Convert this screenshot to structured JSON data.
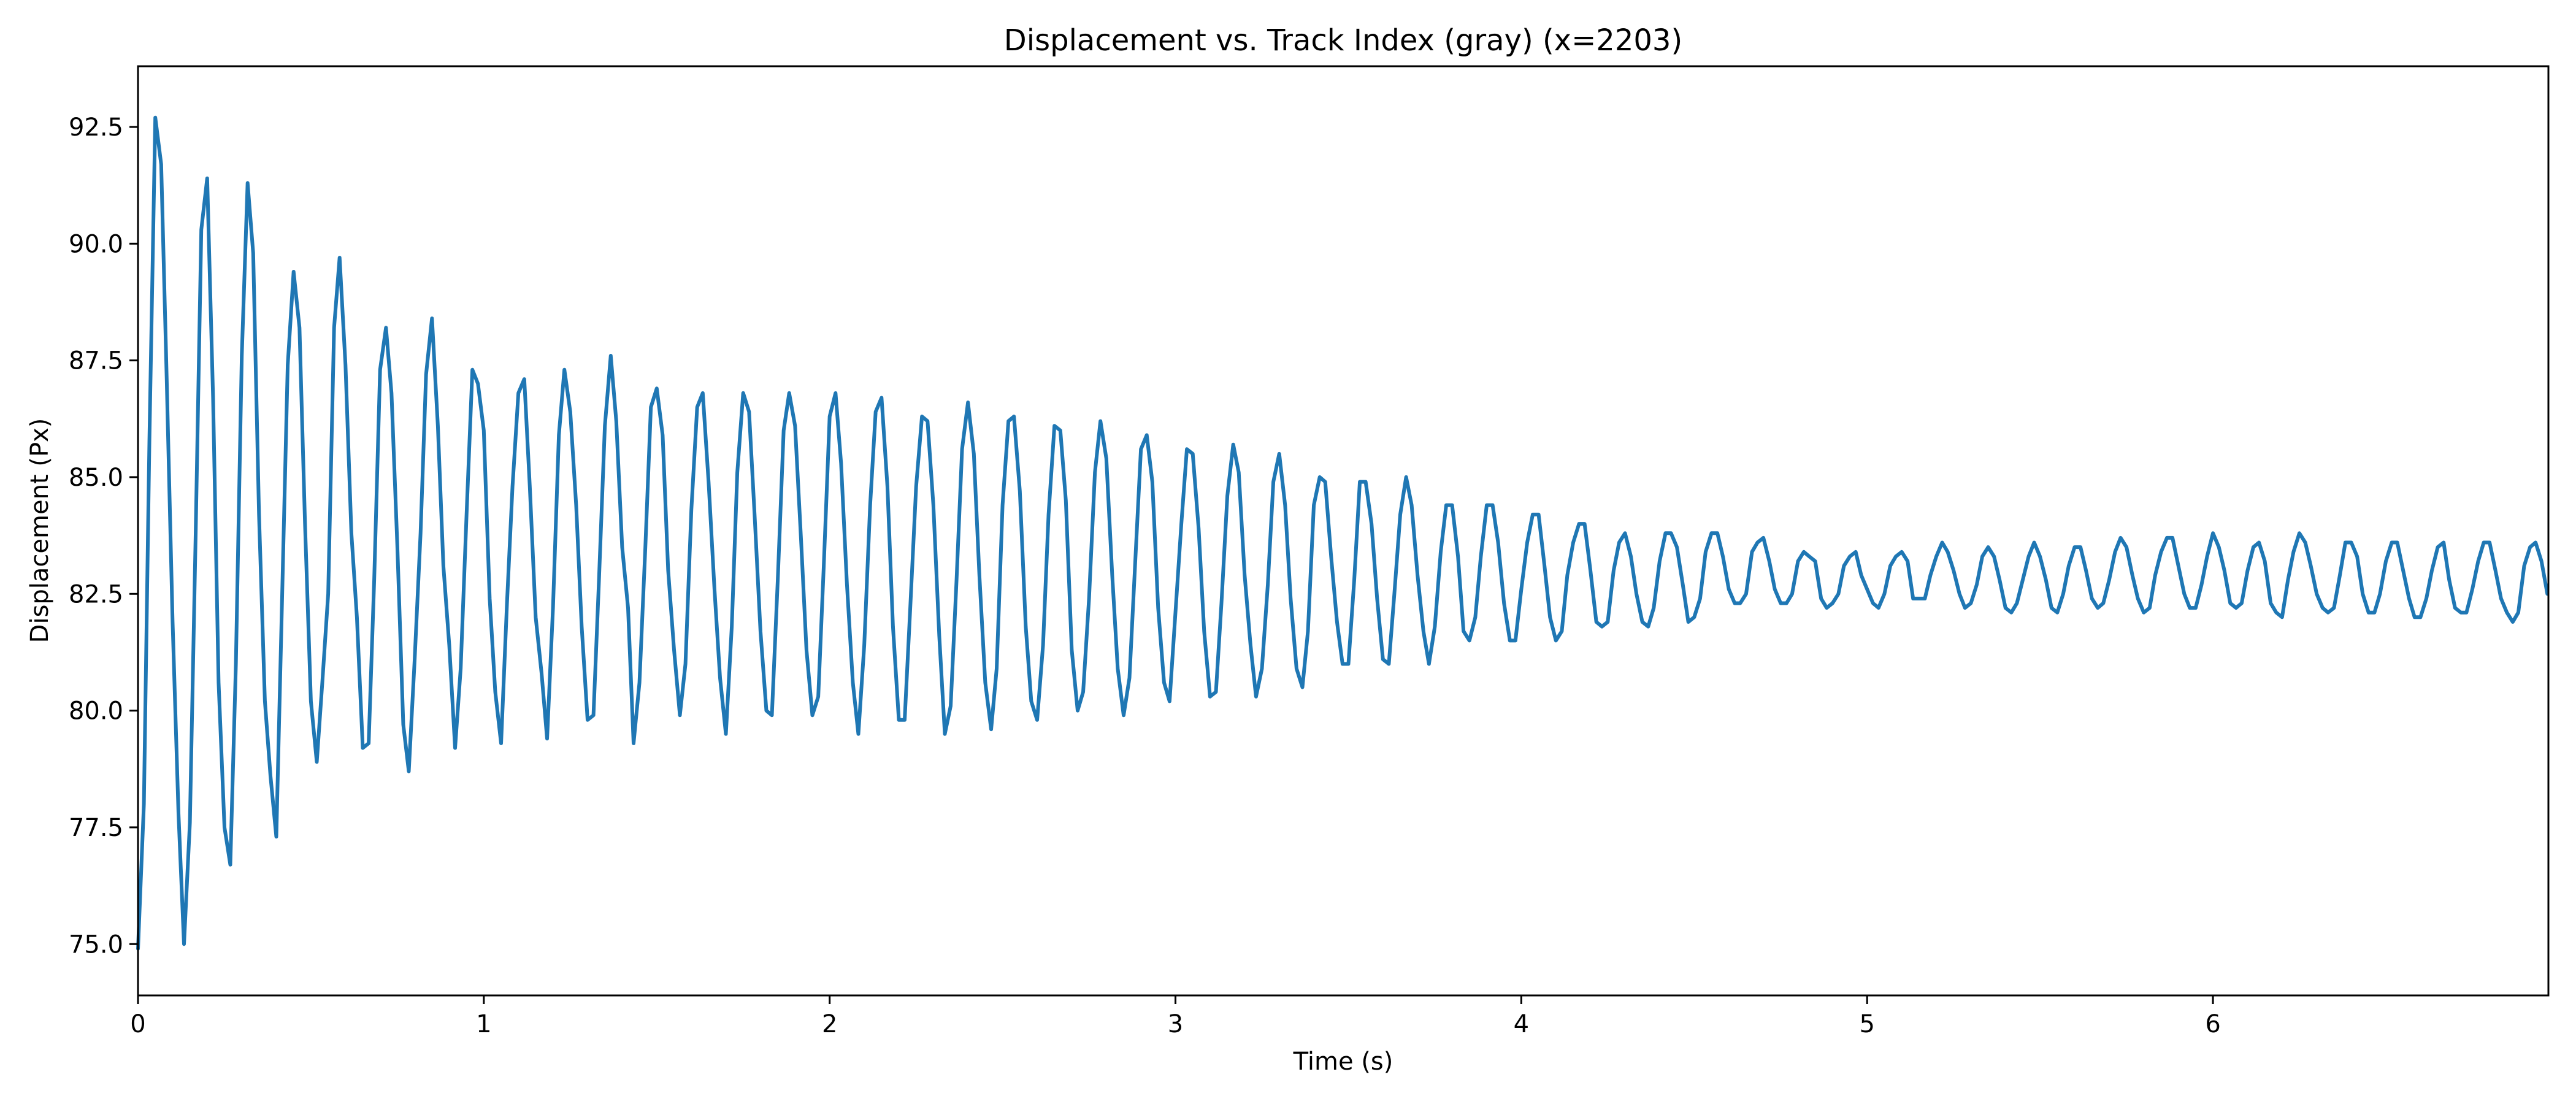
{
  "chart_data": {
    "type": "line",
    "title": "Displacement vs. Track Index (gray) (x=2203)",
    "xlabel": "Time (s)",
    "ylabel": "Displacement (Px)",
    "xlim": [
      0,
      6.97
    ],
    "ylim": [
      73.9,
      93.8
    ],
    "x_ticks": [
      0,
      1,
      2,
      3,
      4,
      5,
      6
    ],
    "x_tick_labels": [
      "0",
      "1",
      "2",
      "3",
      "4",
      "5",
      "6"
    ],
    "y_ticks": [
      75.0,
      77.5,
      80.0,
      82.5,
      85.0,
      87.5,
      90.0,
      92.5
    ],
    "y_tick_labels": [
      "75.0",
      "77.5",
      "80.0",
      "82.5",
      "85.0",
      "87.5",
      "90.0",
      "92.5"
    ],
    "grid": false,
    "legend": "none",
    "line_color": "#1f77b4",
    "series": [
      {
        "x": [
          0.0,
          0.017,
          0.033,
          0.05,
          0.067,
          0.083,
          0.1,
          0.117,
          0.133,
          0.15,
          0.167,
          0.183,
          0.2,
          0.217,
          0.233,
          0.25,
          0.267,
          0.283,
          0.3,
          0.317,
          0.333,
          0.35,
          0.367,
          0.383,
          0.4,
          0.417,
          0.433,
          0.45,
          0.467,
          0.483,
          0.5,
          0.517,
          0.533,
          0.55,
          0.567,
          0.583,
          0.6,
          0.617,
          0.633,
          0.65,
          0.667,
          0.683,
          0.7,
          0.717,
          0.733,
          0.75,
          0.767,
          0.783,
          0.8,
          0.817,
          0.833,
          0.85,
          0.867,
          0.883,
          0.9,
          0.917,
          0.933,
          0.95,
          0.967,
          0.983,
          1.0,
          1.017,
          1.033,
          1.05,
          1.067,
          1.083,
          1.1,
          1.117,
          1.133,
          1.15,
          1.167,
          1.183,
          1.2,
          1.217,
          1.233,
          1.25,
          1.267,
          1.283,
          1.3,
          1.317,
          1.333,
          1.35,
          1.367,
          1.383,
          1.4,
          1.417,
          1.433,
          1.45,
          1.467,
          1.483,
          1.5,
          1.517,
          1.533,
          1.55,
          1.567,
          1.583,
          1.6,
          1.617,
          1.633,
          1.65,
          1.667,
          1.683,
          1.7,
          1.717,
          1.733,
          1.75,
          1.767,
          1.783,
          1.8,
          1.817,
          1.833,
          1.85,
          1.867,
          1.883,
          1.9,
          1.917,
          1.933,
          1.95,
          1.967,
          1.983,
          2.0,
          2.017,
          2.033,
          2.05,
          2.067,
          2.083,
          2.1,
          2.117,
          2.133,
          2.15,
          2.167,
          2.183,
          2.2,
          2.217,
          2.233,
          2.25,
          2.267,
          2.283,
          2.3,
          2.317,
          2.333,
          2.35,
          2.367,
          2.383,
          2.4,
          2.417,
          2.433,
          2.45,
          2.467,
          2.483,
          2.5,
          2.517,
          2.533,
          2.55,
          2.567,
          2.583,
          2.6,
          2.617,
          2.633,
          2.65,
          2.667,
          2.683,
          2.7,
          2.717,
          2.733,
          2.75,
          2.767,
          2.783,
          2.8,
          2.817,
          2.833,
          2.85,
          2.867,
          2.883,
          2.9,
          2.917,
          2.933,
          2.95,
          2.967,
          2.983,
          3.0,
          3.017,
          3.033,
          3.05,
          3.067,
          3.083,
          3.1,
          3.117,
          3.133,
          3.15,
          3.167,
          3.183,
          3.2,
          3.217,
          3.233,
          3.25,
          3.267,
          3.283,
          3.3,
          3.317,
          3.333,
          3.35,
          3.367,
          3.383,
          3.4,
          3.417,
          3.433,
          3.45,
          3.467,
          3.483,
          3.5,
          3.517,
          3.533,
          3.55,
          3.567,
          3.583,
          3.6,
          3.617,
          3.633,
          3.65,
          3.667,
          3.683,
          3.7,
          3.717,
          3.733,
          3.75,
          3.767,
          3.783,
          3.8,
          3.817,
          3.833,
          3.85,
          3.867,
          3.883,
          3.9,
          3.917,
          3.933,
          3.95,
          3.967,
          3.983,
          4.0,
          4.017,
          4.033,
          4.05,
          4.067,
          4.083,
          4.1,
          4.117,
          4.133,
          4.15,
          4.167,
          4.183,
          4.2,
          4.217,
          4.233,
          4.25,
          4.267,
          4.283,
          4.3,
          4.317,
          4.333,
          4.35,
          4.367,
          4.383,
          4.4,
          4.417,
          4.433,
          4.45,
          4.467,
          4.483,
          4.5,
          4.517,
          4.533,
          4.55,
          4.567,
          4.583,
          4.6,
          4.617,
          4.633,
          4.65,
          4.667,
          4.683,
          4.7,
          4.717,
          4.733,
          4.75,
          4.767,
          4.783,
          4.8,
          4.817,
          4.833,
          4.85,
          4.867,
          4.883,
          4.9,
          4.917,
          4.933,
          4.95,
          4.967,
          4.983,
          5.0,
          5.017,
          5.033,
          5.05,
          5.067,
          5.083,
          5.1,
          5.117,
          5.133,
          5.15,
          5.167,
          5.183,
          5.2,
          5.217,
          5.233,
          5.25,
          5.267,
          5.283,
          5.3,
          5.317,
          5.333,
          5.35,
          5.367,
          5.383,
          5.4,
          5.417,
          5.433,
          5.45,
          5.467,
          5.483,
          5.5,
          5.517,
          5.533,
          5.55,
          5.567,
          5.583,
          5.6,
          5.617,
          5.633,
          5.65,
          5.667,
          5.683,
          5.7,
          5.717,
          5.733,
          5.75,
          5.767,
          5.783,
          5.8,
          5.817,
          5.833,
          5.85,
          5.867,
          5.883,
          5.9,
          5.917,
          5.933,
          5.95,
          5.967,
          5.983,
          6.0,
          6.017,
          6.033,
          6.05,
          6.067,
          6.083,
          6.1,
          6.117,
          6.133,
          6.15,
          6.167,
          6.183,
          6.2,
          6.217,
          6.233,
          6.25,
          6.267,
          6.283,
          6.3,
          6.317,
          6.333,
          6.35,
          6.367,
          6.383,
          6.4,
          6.417,
          6.433,
          6.45,
          6.467,
          6.483,
          6.5,
          6.517,
          6.533,
          6.55,
          6.567,
          6.583,
          6.6,
          6.617,
          6.633,
          6.65,
          6.667,
          6.683,
          6.7,
          6.717,
          6.733,
          6.75,
          6.767,
          6.783,
          6.8,
          6.817,
          6.833,
          6.85,
          6.867,
          6.883,
          6.9,
          6.917,
          6.933,
          6.95,
          6.967
        ],
        "y": [
          74.9,
          78.0,
          85.8,
          92.7,
          91.7,
          87.1,
          81.9,
          77.8,
          75.0,
          77.6,
          83.9,
          90.3,
          91.4,
          86.7,
          80.6,
          77.5,
          76.7,
          81.0,
          87.6,
          91.3,
          89.8,
          84.2,
          80.2,
          78.6,
          77.3,
          82.5,
          87.4,
          89.4,
          88.2,
          84.0,
          80.2,
          78.9,
          80.6,
          82.5,
          88.2,
          89.7,
          87.4,
          83.8,
          82.0,
          79.2,
          79.3,
          82.8,
          87.3,
          88.2,
          86.8,
          83.5,
          79.7,
          78.7,
          81.1,
          83.8,
          87.2,
          88.4,
          86.1,
          83.1,
          81.4,
          79.2,
          80.9,
          84.2,
          87.3,
          87.0,
          86.0,
          82.4,
          80.4,
          79.3,
          82.3,
          84.8,
          86.8,
          87.1,
          84.8,
          82.0,
          80.8,
          79.4,
          82.2,
          85.9,
          87.3,
          86.4,
          84.4,
          81.8,
          79.8,
          79.9,
          82.8,
          86.1,
          87.6,
          86.2,
          83.5,
          82.2,
          79.3,
          80.6,
          83.5,
          86.5,
          86.9,
          85.9,
          83.0,
          81.3,
          79.9,
          81.0,
          84.3,
          86.5,
          86.8,
          84.9,
          82.6,
          80.7,
          79.5,
          81.8,
          85.1,
          86.8,
          86.4,
          84.2,
          81.7,
          80.0,
          79.9,
          82.8,
          86.0,
          86.8,
          86.1,
          83.7,
          81.3,
          79.9,
          80.3,
          83.1,
          86.3,
          86.8,
          85.3,
          82.7,
          80.6,
          79.5,
          81.4,
          84.4,
          86.4,
          86.7,
          84.8,
          81.8,
          79.8,
          79.8,
          82.2,
          84.8,
          86.3,
          86.2,
          84.4,
          81.6,
          79.5,
          80.1,
          82.8,
          85.6,
          86.6,
          85.5,
          82.9,
          80.6,
          79.6,
          80.9,
          84.4,
          86.2,
          86.3,
          84.7,
          81.8,
          80.2,
          79.8,
          81.4,
          84.2,
          86.1,
          86.0,
          84.5,
          81.3,
          80.0,
          80.4,
          82.4,
          85.1,
          86.2,
          85.4,
          82.9,
          80.9,
          79.9,
          80.7,
          83.1,
          85.6,
          85.9,
          84.9,
          82.2,
          80.6,
          80.2,
          82.1,
          84.0,
          85.6,
          85.5,
          83.9,
          81.7,
          80.3,
          80.4,
          82.3,
          84.6,
          85.7,
          85.1,
          82.9,
          81.4,
          80.3,
          80.9,
          82.7,
          84.9,
          85.5,
          84.4,
          82.4,
          80.9,
          80.5,
          81.7,
          84.4,
          85.0,
          84.9,
          83.3,
          81.9,
          81.0,
          81.0,
          82.8,
          84.9,
          84.9,
          84.0,
          82.4,
          81.1,
          81.0,
          82.5,
          84.2,
          85.0,
          84.4,
          82.9,
          81.7,
          81.0,
          81.8,
          83.4,
          84.4,
          84.4,
          83.3,
          81.7,
          81.5,
          82.0,
          83.3,
          84.4,
          84.4,
          83.6,
          82.3,
          81.5,
          81.5,
          82.6,
          83.6,
          84.2,
          84.2,
          83.1,
          82.0,
          81.5,
          81.7,
          82.9,
          83.6,
          84.0,
          84.0,
          83.0,
          81.9,
          81.8,
          81.9,
          83.0,
          83.6,
          83.8,
          83.3,
          82.5,
          81.9,
          81.8,
          82.2,
          83.2,
          83.8,
          83.8,
          83.5,
          82.7,
          81.9,
          82.0,
          82.4,
          83.4,
          83.8,
          83.8,
          83.3,
          82.6,
          82.3,
          82.3,
          82.5,
          83.4,
          83.6,
          83.7,
          83.2,
          82.6,
          82.3,
          82.3,
          82.5,
          83.2,
          83.4,
          83.3,
          83.2,
          82.4,
          82.2,
          82.3,
          82.5,
          83.1,
          83.3,
          83.4,
          82.9,
          82.6,
          82.3,
          82.2,
          82.5,
          83.1,
          83.3,
          83.4,
          83.2,
          82.4,
          82.4,
          82.4,
          82.9,
          83.3,
          83.6,
          83.4,
          83.0,
          82.5,
          82.2,
          82.3,
          82.7,
          83.3,
          83.5,
          83.3,
          82.8,
          82.2,
          82.1,
          82.3,
          82.8,
          83.3,
          83.6,
          83.3,
          82.8,
          82.2,
          82.1,
          82.5,
          83.1,
          83.5,
          83.5,
          83.0,
          82.4,
          82.2,
          82.3,
          82.8,
          83.4,
          83.7,
          83.5,
          82.9,
          82.4,
          82.1,
          82.2,
          82.9,
          83.4,
          83.7,
          83.7,
          83.1,
          82.5,
          82.2,
          82.2,
          82.7,
          83.3,
          83.8,
          83.5,
          83.0,
          82.3,
          82.2,
          82.3,
          83.0,
          83.5,
          83.6,
          83.2,
          82.3,
          82.1,
          82.0,
          82.8,
          83.4,
          83.8,
          83.6,
          83.1,
          82.5,
          82.2,
          82.1,
          82.2,
          82.9,
          83.6,
          83.6,
          83.3,
          82.5,
          82.1,
          82.1,
          82.5,
          83.2,
          83.6,
          83.6,
          83.0,
          82.4,
          82.0,
          82.0,
          82.4,
          83.0,
          83.5,
          83.6,
          82.8,
          82.2,
          82.1,
          82.1,
          82.6,
          83.2,
          83.6,
          83.6,
          83.0,
          82.4,
          82.1,
          81.9,
          82.1,
          83.1,
          83.5,
          83.6,
          83.2,
          82.5
        ]
      }
    ]
  }
}
